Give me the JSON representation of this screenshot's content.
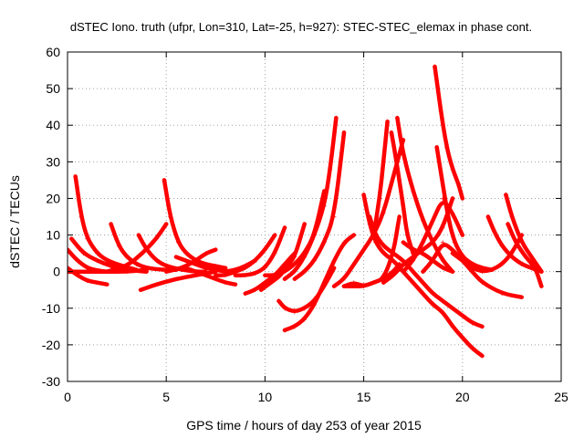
{
  "chart_data": {
    "type": "scatter",
    "title": "dSTEC Iono. truth (ufpr, Lon=310, Lat=-25, h=927): STEC-STEC_elemax in phase cont.",
    "xlabel": "GPS time / hours of day 253 of year 2015",
    "ylabel": "dSTEC  / TECUs",
    "xlim": [
      0,
      25
    ],
    "ylim": [
      -30,
      60
    ],
    "x_ticks": [
      0,
      5,
      10,
      15,
      20,
      25
    ],
    "y_ticks": [
      -30,
      -20,
      -10,
      0,
      10,
      20,
      30,
      40,
      50,
      60
    ],
    "grid": true,
    "legend": "none",
    "color": "#ff0000",
    "series": [
      {
        "x": [
          0,
          0.5,
          1.0,
          1.5,
          2.0
        ],
        "y": [
          6,
          3,
          1,
          0.3,
          0
        ]
      },
      {
        "x": [
          0.4,
          0.7,
          1.0,
          1.5,
          2.0,
          2.8,
          3.5
        ],
        "y": [
          26,
          15,
          9,
          5,
          3,
          1.5,
          0.5
        ]
      },
      {
        "x": [
          0.2,
          0.8,
          1.5,
          2.2,
          3.0,
          4.0
        ],
        "y": [
          9,
          5,
          3,
          1.5,
          0.5,
          0
        ]
      },
      {
        "x": [
          0,
          0.5,
          1.0,
          1.5,
          2.0
        ],
        "y": [
          1,
          -1,
          -2.5,
          -3,
          -3.5
        ]
      },
      {
        "x": [
          0,
          1.0,
          2.0,
          3.0,
          4.0
        ],
        "y": [
          0,
          0,
          0,
          0,
          0.5
        ]
      },
      {
        "x": [
          2.2,
          2.6,
          3.0,
          3.5,
          4.0,
          4.8,
          5.5
        ],
        "y": [
          13,
          7,
          4,
          2,
          1,
          0.5,
          0.5
        ]
      },
      {
        "x": [
          3.6,
          4.0,
          4.5,
          5.0,
          5.8,
          6.5,
          7.0
        ],
        "y": [
          10,
          6,
          3,
          1.5,
          0.5,
          0,
          0
        ]
      },
      {
        "x": [
          2.0,
          3.0,
          3.8,
          4.5,
          5.0
        ],
        "y": [
          0,
          1.5,
          5,
          9,
          13
        ]
      },
      {
        "x": [
          4.9,
          5.2,
          5.6,
          6.0,
          6.5,
          7.0,
          7.5,
          8.0
        ],
        "y": [
          25,
          15,
          8,
          5,
          3,
          2,
          1.5,
          1
        ]
      },
      {
        "x": [
          5.5,
          6.0,
          6.5,
          7.0,
          7.5,
          8.0,
          8.5,
          9.0,
          9.5
        ],
        "y": [
          4,
          3,
          2,
          1,
          0.5,
          0,
          0.5,
          1.5,
          3
        ]
      },
      {
        "x": [
          3.7,
          4.5,
          5.5,
          6.5,
          7.5
        ],
        "y": [
          -5,
          -3.5,
          -2,
          -1,
          0
        ]
      },
      {
        "x": [
          5.0,
          5.8,
          6.5,
          7.0,
          7.5
        ],
        "y": [
          0,
          1,
          3,
          5,
          6
        ]
      },
      {
        "x": [
          6.0,
          6.5,
          7.0,
          7.5,
          8.0,
          8.5
        ],
        "y": [
          1,
          0,
          -1,
          -2,
          -3,
          -3.5
        ]
      },
      {
        "x": [
          7.5,
          8.0,
          8.5,
          9.0,
          9.5,
          10.0,
          10.5
        ],
        "y": [
          -1,
          -1,
          0,
          1,
          3,
          6,
          10
        ]
      },
      {
        "x": [
          8.5,
          9.0,
          9.5,
          10.0,
          10.5,
          11.0
        ],
        "y": [
          -1,
          -1,
          -0.5,
          1,
          5,
          12
        ]
      },
      {
        "x": [
          9.0,
          9.5,
          10.0,
          10.5,
          11.0,
          11.5
        ],
        "y": [
          -6,
          -5,
          -3,
          -1,
          2,
          5
        ]
      },
      {
        "x": [
          9.8,
          10.3,
          10.8,
          11.2,
          11.5,
          12.0
        ],
        "y": [
          -5,
          -3,
          -1,
          2,
          4,
          13
        ]
      },
      {
        "x": [
          11.0,
          11.5,
          12.0,
          12.5,
          13.0,
          13.3,
          13.6
        ],
        "y": [
          -2,
          0,
          4,
          10,
          18,
          28,
          42
        ]
      },
      {
        "x": [
          11.5,
          12.0,
          12.5,
          13.0,
          13.5,
          14.0
        ],
        "y": [
          -2,
          0,
          3,
          8,
          15,
          38
        ]
      },
      {
        "x": [
          10.0,
          10.5,
          11.0,
          11.5,
          12.0,
          12.5,
          13.0
        ],
        "y": [
          -1,
          -1,
          0,
          2,
          5,
          10,
          22
        ]
      },
      {
        "x": [
          10.7,
          11.0,
          11.5,
          12.0,
          12.5,
          13.0,
          13.5
        ],
        "y": [
          -8,
          -10,
          -11,
          -10,
          -8,
          -4,
          1
        ]
      },
      {
        "x": [
          11.0,
          11.5,
          12.0,
          12.5,
          13.0,
          13.5,
          14.0,
          14.5
        ],
        "y": [
          -16,
          -15,
          -13,
          -9,
          -3,
          3,
          8,
          10
        ]
      },
      {
        "x": [
          15.0,
          15.3,
          15.6,
          16.0,
          16.5,
          17.0,
          17.5,
          18.0,
          18.5,
          19.0,
          19.5,
          20.0,
          20.5,
          21.0
        ],
        "y": [
          21,
          13,
          8,
          5,
          3,
          0,
          -3,
          -6,
          -9,
          -11,
          -15,
          -18,
          -21,
          -23
        ]
      },
      {
        "x": [
          15.3,
          15.6,
          16.0,
          16.5,
          17.0,
          17.5,
          18.0,
          18.5,
          19.0,
          19.5,
          20.0,
          20.5,
          21.0
        ],
        "y": [
          15,
          10,
          7,
          5,
          3,
          0,
          -3,
          -6,
          -8,
          -10,
          -12,
          -14,
          -15
        ]
      },
      {
        "x": [
          15.5,
          15.8,
          16.0,
          16.2
        ],
        "y": [
          10,
          20,
          30,
          41
        ]
      },
      {
        "x": [
          13.5,
          14.0,
          14.5,
          15.0,
          15.5,
          16.0,
          16.5,
          17.0
        ],
        "y": [
          -4,
          -2,
          2,
          6,
          10,
          16,
          26,
          36
        ]
      },
      {
        "x": [
          14.0,
          14.5,
          15.0,
          15.5,
          16.0,
          16.5,
          16.8
        ],
        "y": [
          -4,
          -3,
          -4,
          -3,
          -2,
          5,
          15
        ]
      },
      {
        "x": [
          14.0,
          14.5,
          15.0,
          15.5,
          16.0,
          16.5,
          16.8
        ],
        "y": [
          -4,
          -4,
          -4,
          -3,
          -2,
          0,
          2
        ]
      },
      {
        "x": [
          16.4,
          16.6,
          16.8,
          17.0,
          17.2,
          17.5
        ],
        "y": [
          38,
          32,
          25,
          18,
          10,
          5
        ]
      },
      {
        "x": [
          16.7,
          17.0,
          17.5,
          18.0,
          18.5,
          19.0,
          19.5
        ],
        "y": [
          42,
          32,
          22,
          14,
          8,
          3,
          0
        ]
      },
      {
        "x": [
          17.0,
          17.5,
          18.0,
          18.5,
          19.0,
          19.5
        ],
        "y": [
          8,
          6,
          5,
          3,
          1,
          0
        ]
      },
      {
        "x": [
          16.0,
          16.5,
          17.0,
          17.5,
          18.0,
          18.5,
          19.0,
          19.5
        ],
        "y": [
          -3,
          -1,
          2,
          4,
          6,
          8,
          12,
          20
        ]
      },
      {
        "x": [
          18.6,
          18.9,
          19.2,
          19.5,
          19.8,
          20.0
        ],
        "y": [
          56,
          44,
          34,
          28,
          24,
          20
        ]
      },
      {
        "x": [
          18.7,
          19.0,
          19.3,
          19.6,
          20.0,
          20.5,
          21.0,
          21.5
        ],
        "y": [
          34,
          24,
          14,
          8,
          4,
          2,
          1,
          0.5
        ]
      },
      {
        "x": [
          17.0,
          17.5,
          18.0,
          18.5,
          19.0,
          19.5,
          20.0
        ],
        "y": [
          0,
          3,
          8,
          14,
          20,
          16,
          10
        ]
      },
      {
        "x": [
          18.0,
          18.5,
          19.0,
          19.5,
          20.0,
          20.5,
          21.0,
          22.0,
          23.0
        ],
        "y": [
          0,
          3,
          8,
          6,
          3,
          0,
          -3,
          -6,
          -7
        ]
      },
      {
        "x": [
          19.5,
          20.0,
          20.5,
          21.0,
          21.5,
          22.0,
          22.5,
          23.0
        ],
        "y": [
          5,
          3,
          1,
          0,
          0.5,
          2,
          5,
          10
        ]
      },
      {
        "x": [
          21.3,
          21.6,
          22.0,
          22.5,
          23.0,
          23.5,
          24.0
        ],
        "y": [
          15,
          11,
          7,
          4,
          2,
          1,
          0
        ]
      },
      {
        "x": [
          22.2,
          22.5,
          23.0,
          23.5,
          24.0
        ],
        "y": [
          21,
          15,
          8,
          4,
          0
        ]
      },
      {
        "x": [
          22.3,
          22.7,
          23.2,
          23.7,
          24.0
        ],
        "y": [
          13,
          8,
          4,
          1,
          -4
        ]
      }
    ]
  }
}
